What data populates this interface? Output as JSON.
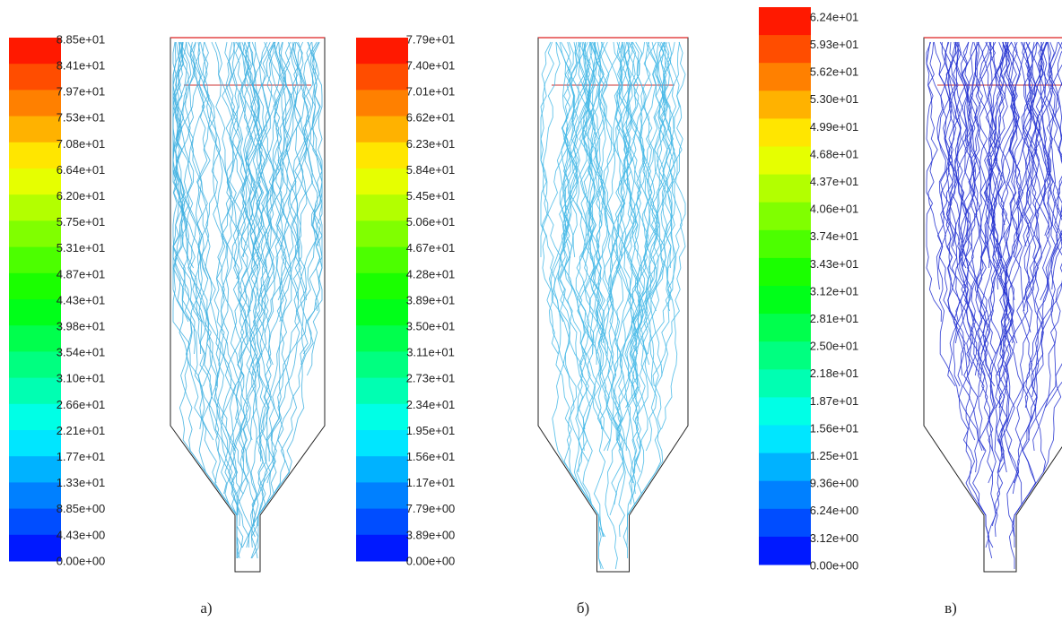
{
  "panels": [
    {
      "caption": "а)",
      "labels": [
        "8.85e+01",
        "8.41e+01",
        "7.97e+01",
        "7.53e+01",
        "7.08e+01",
        "6.64e+01",
        "6.20e+01",
        "5.75e+01",
        "5.31e+01",
        "4.87e+01",
        "4.43e+01",
        "3.98e+01",
        "3.54e+01",
        "3.10e+01",
        "2.66e+01",
        "2.21e+01",
        "1.77e+01",
        "1.33e+01",
        "8.85e+00",
        "4.43e+00",
        "0.00e+00"
      ]
    },
    {
      "caption": "б)",
      "labels": [
        "7.79e+01",
        "7.40e+01",
        "7.01e+01",
        "6.62e+01",
        "6.23e+01",
        "5.84e+01",
        "5.45e+01",
        "5.06e+01",
        "4.67e+01",
        "4.28e+01",
        "3.89e+01",
        "3.50e+01",
        "3.11e+01",
        "2.73e+01",
        "2.34e+01",
        "1.95e+01",
        "1.56e+01",
        "1.17e+01",
        "7.79e+00",
        "3.89e+00",
        "0.00e+00"
      ]
    },
    {
      "caption": "в)",
      "labels": [
        "6.24e+01",
        "5.93e+01",
        "5.62e+01",
        "5.30e+01",
        "4.99e+01",
        "4.68e+01",
        "4.37e+01",
        "4.06e+01",
        "3.74e+01",
        "3.43e+01",
        "3.12e+01",
        "2.81e+01",
        "2.50e+01",
        "2.18e+01",
        "1.87e+01",
        "1.56e+01",
        "1.25e+01",
        "9.36e+00",
        "6.24e+00",
        "3.12e+00",
        "0.00e+00"
      ]
    }
  ]
}
